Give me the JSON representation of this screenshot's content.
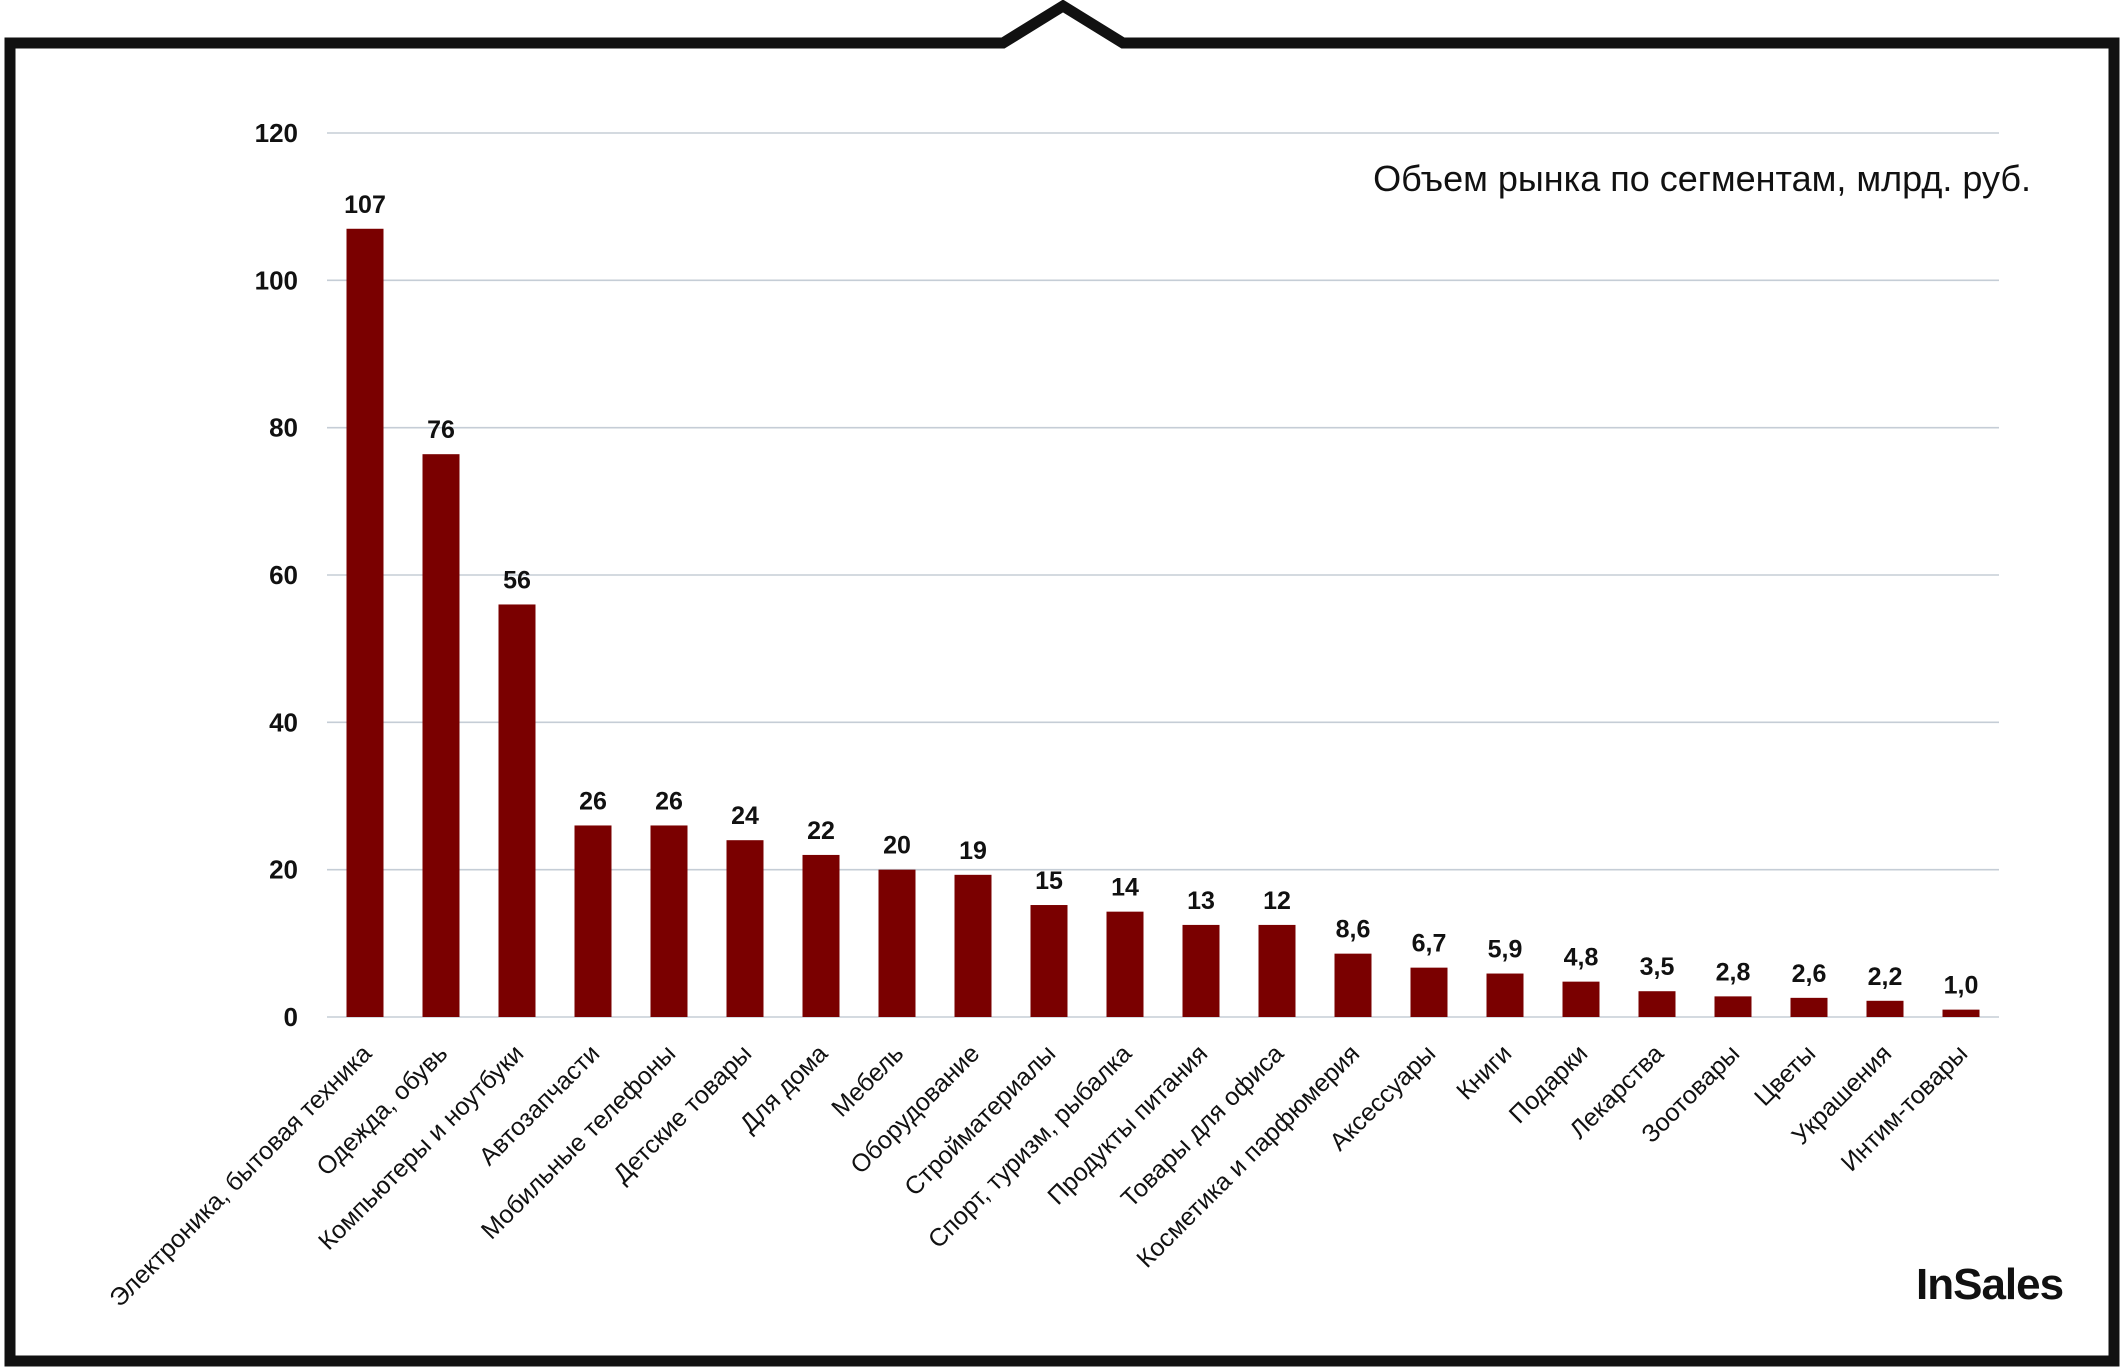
{
  "logo": {
    "text": "InSales"
  },
  "colors": {
    "bar": "#7a0000",
    "grid": "#c5cdd6",
    "frame": "#111111"
  },
  "chart_data": {
    "type": "bar",
    "title": "Объем рынка по сегментам, млрд. руб.",
    "xlabel": "",
    "ylabel": "",
    "ylim": [
      0,
      120
    ],
    "yticks": [
      0,
      20,
      40,
      60,
      80,
      100,
      120
    ],
    "grid": true,
    "categories": [
      "Электроника, бытовая техника",
      "Одежда, обувь",
      "Компьютеры и ноутбуки",
      "Автозапчасти",
      "Мобильные телефоны",
      "Детские товары",
      "Для дома",
      "Мебель",
      "Оборудование",
      "Стройматериалы",
      "Спорт, туризм, рыбалка",
      "Продукты питания",
      "Товары для офиса",
      "Косметика и парфюмерия",
      "Аксессуары",
      "Книги",
      "Подарки",
      "Лекарства",
      "Зоотовары",
      "Цветы",
      "Украшения",
      "Интим-товары"
    ],
    "values": [
      107,
      76.4,
      56,
      26,
      26,
      24,
      22,
      20,
      19.3,
      15.2,
      14.3,
      12.5,
      12.5,
      8.6,
      6.7,
      5.9,
      4.8,
      3.5,
      2.8,
      2.6,
      2.2,
      1.0
    ],
    "data_labels": [
      "107",
      "76",
      "56",
      "26",
      "26",
      "24",
      "22",
      "20",
      "19",
      "15",
      "14",
      "13",
      "12",
      "8,6",
      "6,7",
      "5,9",
      "4,8",
      "3,5",
      "2,8",
      "2,6",
      "2,2",
      "1,0"
    ]
  }
}
